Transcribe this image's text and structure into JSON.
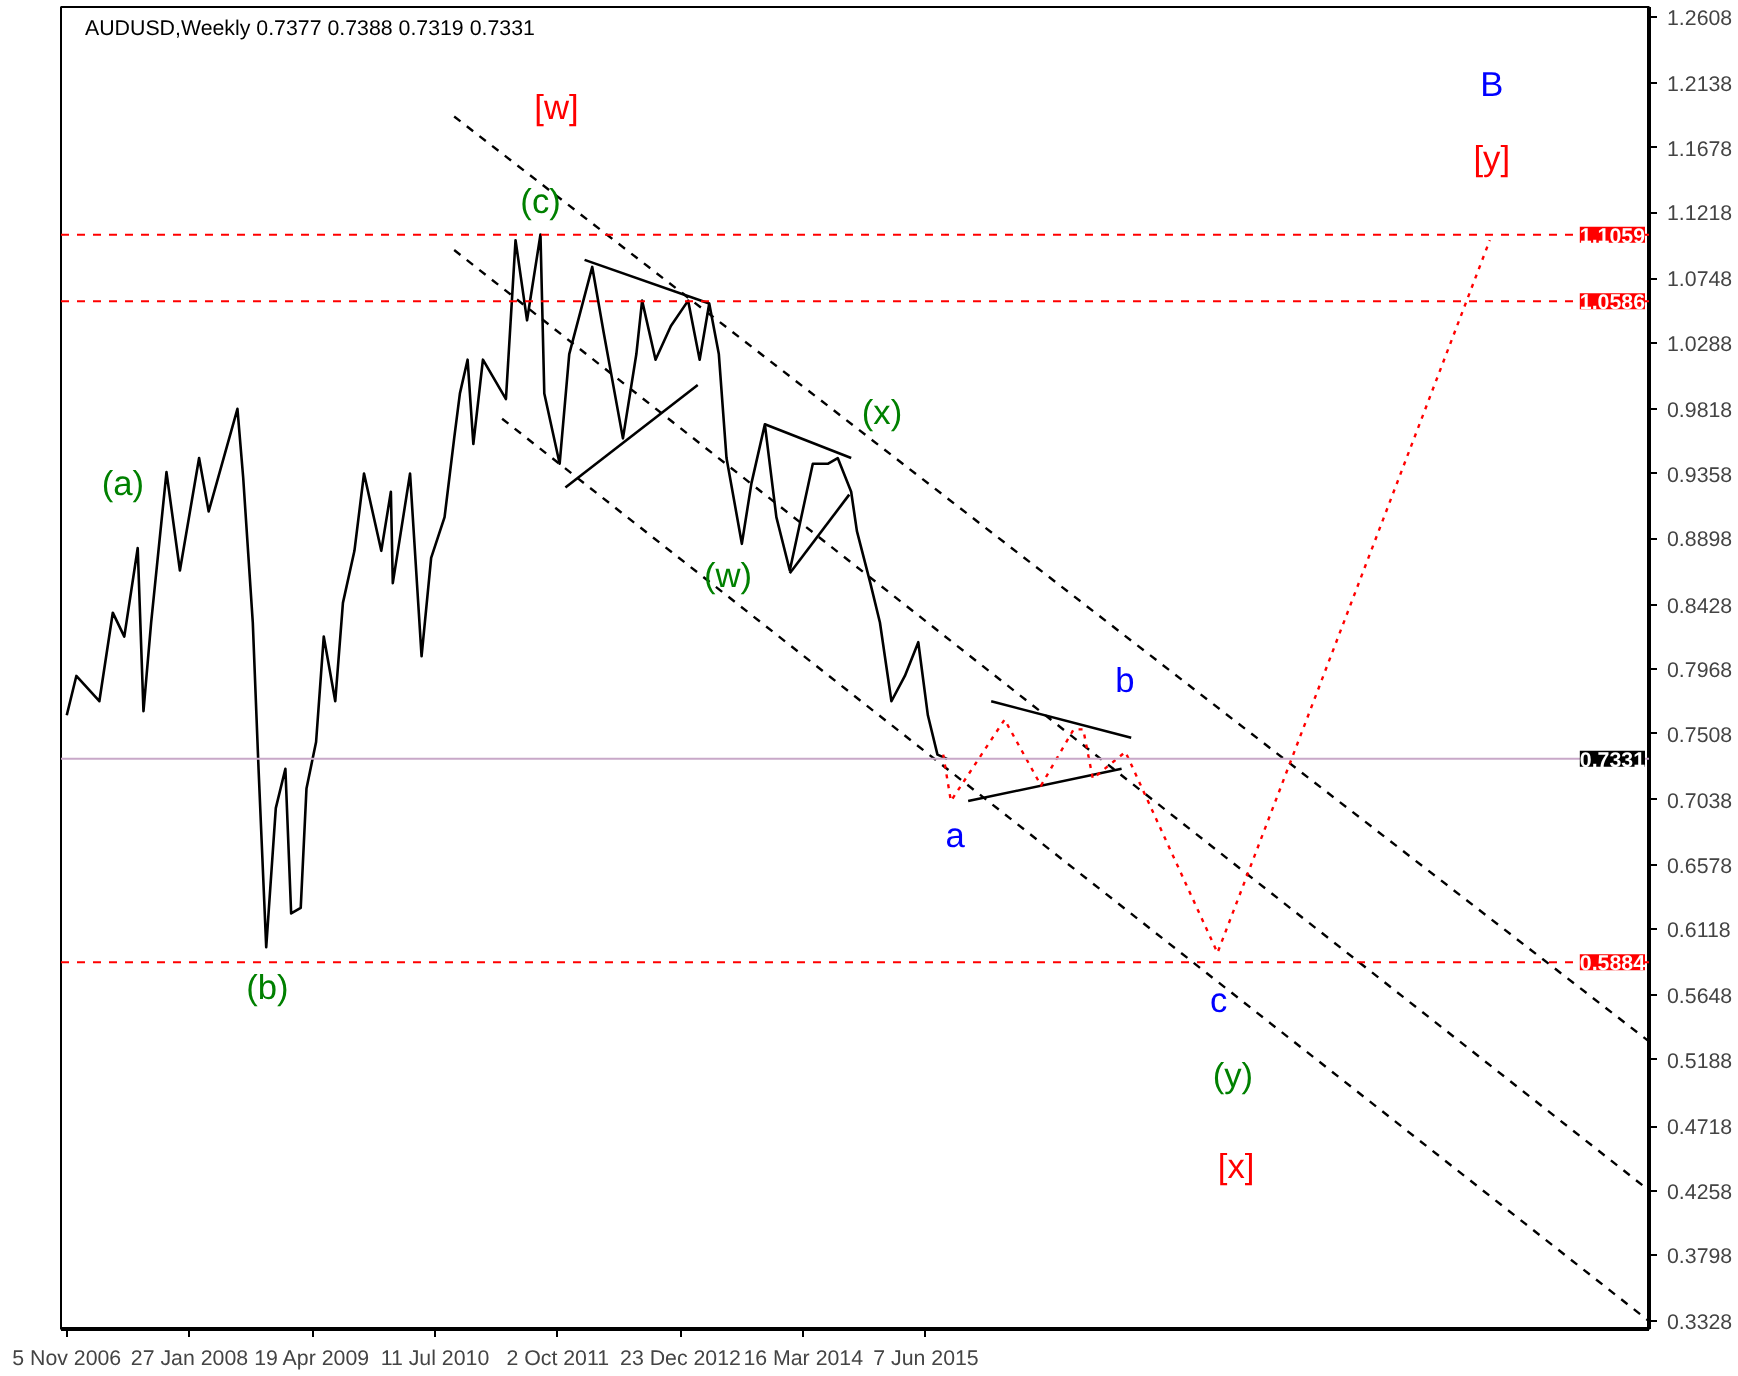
{
  "chart_data": {
    "type": "line",
    "title": "AUDUSD,Weekly  0.7377 0.7388 0.7319 0.7331",
    "xlim": [
      "2006-10-15",
      "2022-08-28"
    ],
    "ylim": [
      0.3274,
      1.2679
    ],
    "xticks": [
      {
        "value": "2006-11-05",
        "label": "5 Nov 2006"
      },
      {
        "value": "2008-01-27",
        "label": "27 Jan 2008"
      },
      {
        "value": "2009-04-19",
        "label": "19 Apr 2009"
      },
      {
        "value": "2010-07-11",
        "label": "11 Jul 2010"
      },
      {
        "value": "2011-10-02",
        "label": "2 Oct 2011"
      },
      {
        "value": "2012-12-23",
        "label": "23 Dec 2012"
      },
      {
        "value": "2014-03-16",
        "label": "16 Mar 2014"
      },
      {
        "value": "2015-06-07",
        "label": "7 Jun 2015"
      }
    ],
    "yticks": [
      1.2608,
      1.2138,
      1.1678,
      1.1218,
      1.0748,
      1.0288,
      0.9818,
      0.9358,
      0.8898,
      0.8428,
      0.7968,
      0.7508,
      0.7038,
      0.6578,
      0.6118,
      0.5648,
      0.5188,
      0.4718,
      0.4258,
      0.3798,
      0.3328
    ],
    "grid": false,
    "series": [
      {
        "color": "#000000",
        "line_style": "solid",
        "x": [
          "2006-11-05",
          "2006-12-10",
          "2007-03-04",
          "2007-04-22",
          "2007-06-03",
          "2007-07-22",
          "2007-08-12",
          "2007-09-09",
          "2007-11-04",
          "2007-12-23",
          "2008-03-02",
          "2008-04-06",
          "2008-07-20",
          "2008-08-10",
          "2008-09-14",
          "2008-10-05",
          "2008-11-02",
          "2008-12-07",
          "2009-01-11",
          "2009-02-01",
          "2009-03-08",
          "2009-03-29",
          "2009-05-03",
          "2009-05-31",
          "2009-07-12",
          "2009-08-09",
          "2009-09-20",
          "2009-10-25",
          "2009-12-27",
          "2010-01-31",
          "2010-02-07",
          "2010-04-11",
          "2010-05-23",
          "2010-06-27",
          "2010-08-15",
          "2010-09-19",
          "2010-10-10",
          "2010-11-07",
          "2010-11-28",
          "2011-01-02",
          "2011-03-27",
          "2011-05-01",
          "2011-06-12",
          "2011-07-31",
          "2011-08-14",
          "2011-10-09",
          "2011-11-13",
          "2012-02-05",
          "2012-03-18",
          "2012-05-27",
          "2012-07-15",
          "2012-08-05",
          "2012-09-23",
          "2012-11-18",
          "2013-01-20",
          "2013-03-03",
          "2013-04-07",
          "2013-05-12",
          "2013-06-09",
          "2013-07-14",
          "2013-08-04",
          "2013-09-08",
          "2013-10-27",
          "2013-12-08",
          "2014-01-26",
          "2014-04-20",
          "2014-06-15",
          "2014-07-20",
          "2014-09-07",
          "2014-09-28",
          "2014-11-16",
          "2014-12-21",
          "2015-02-01",
          "2015-03-22",
          "2015-05-10",
          "2015-06-14",
          "2015-07-19",
          "2015-08-23"
        ],
        "values": [
          0.764,
          0.792,
          0.774,
          0.837,
          0.82,
          0.883,
          0.767,
          0.83,
          0.937,
          0.867,
          0.947,
          0.909,
          0.982,
          0.933,
          0.83,
          0.726,
          0.599,
          0.698,
          0.726,
          0.623,
          0.627,
          0.712,
          0.745,
          0.82,
          0.774,
          0.844,
          0.881,
          0.936,
          0.881,
          0.923,
          0.858,
          0.936,
          0.806,
          0.876,
          0.905,
          0.961,
          0.993,
          1.017,
          0.957,
          1.017,
          0.989,
          1.102,
          1.045,
          1.106,
          0.993,
          0.943,
          1.021,
          1.083,
          1.036,
          0.961,
          1.021,
          1.059,
          1.017,
          1.041,
          1.059,
          1.017,
          1.057,
          1.021,
          0.947,
          0.909,
          0.886,
          0.929,
          0.971,
          0.905,
          0.867,
          0.943,
          0.943,
          0.947,
          0.923,
          0.895,
          0.858,
          0.83,
          0.774,
          0.792,
          0.816,
          0.764,
          0.736,
          0.733
        ]
      },
      {
        "color": "#000000",
        "line_style": "dashed",
        "x": [
          "2010-09-19",
          "2022-08-28"
        ],
        "values": [
          1.19,
          0.532
        ]
      },
      {
        "color": "#000000",
        "line_style": "dashed",
        "x": [
          "2010-09-19",
          "2022-08-28"
        ],
        "values": [
          1.095,
          0.426
        ]
      },
      {
        "color": "#000000",
        "line_style": "dashed",
        "x": [
          "2011-03-13",
          "2022-08-28"
        ],
        "values": [
          0.975,
          0.333
        ]
      },
      {
        "color": "#000000",
        "line_style": "solid",
        "x": [
          "2012-01-08",
          "2013-04-07"
        ],
        "values": [
          1.088,
          1.057
        ]
      },
      {
        "color": "#000000",
        "line_style": "solid",
        "x": [
          "2011-10-30",
          "2013-02-24"
        ],
        "values": [
          0.926,
          0.999
        ]
      },
      {
        "color": "#000000",
        "line_style": "solid",
        "x": [
          "2013-10-27",
          "2014-09-07"
        ],
        "values": [
          0.971,
          0.947
        ]
      },
      {
        "color": "#000000",
        "line_style": "solid",
        "x": [
          "2014-01-26",
          "2014-08-31"
        ],
        "values": [
          0.865,
          0.921
        ]
      },
      {
        "color": "#000000",
        "line_style": "solid",
        "x": [
          "2016-01-31",
          "2017-06-25"
        ],
        "values": [
          0.774,
          0.748
        ]
      },
      {
        "color": "#000000",
        "line_style": "solid",
        "x": [
          "2015-11-08",
          "2017-05-21"
        ],
        "values": [
          0.703,
          0.726
        ]
      },
      {
        "color": "#ff0000",
        "line_style": "dotted",
        "x": [
          "2015-08-09",
          "2015-09-06",
          "2016-03-20",
          "2016-07-31",
          "2016-11-27",
          "2017-01-01",
          "2017-02-05",
          "2017-06-04",
          "2018-05-06",
          "2021-01-24"
        ],
        "values": [
          0.736,
          0.703,
          0.761,
          0.714,
          0.754,
          0.754,
          0.719,
          0.738,
          0.595,
          1.102
        ]
      }
    ],
    "ref_lines": [
      {
        "axis": "y",
        "value": 1.1059,
        "label": "1.1059",
        "color": "#ff0000",
        "line_style": "dashed"
      },
      {
        "axis": "y",
        "value": 1.0586,
        "label": "1.0586",
        "color": "#ff0000",
        "line_style": "dashed"
      },
      {
        "axis": "y",
        "value": 0.7331,
        "label": "0.7331",
        "color": "#c8a8c8",
        "line_style": "solid"
      },
      {
        "axis": "y",
        "value": 0.5884,
        "label": "0.5884",
        "color": "#ff0000",
        "line_style": "dashed"
      }
    ],
    "annotations": [
      "(a)",
      "(b)",
      "(c)",
      "[w]",
      "(w)",
      "(x)",
      "a",
      "b",
      "c",
      "(y)",
      "[x]",
      "B",
      "[y]"
    ]
  }
}
